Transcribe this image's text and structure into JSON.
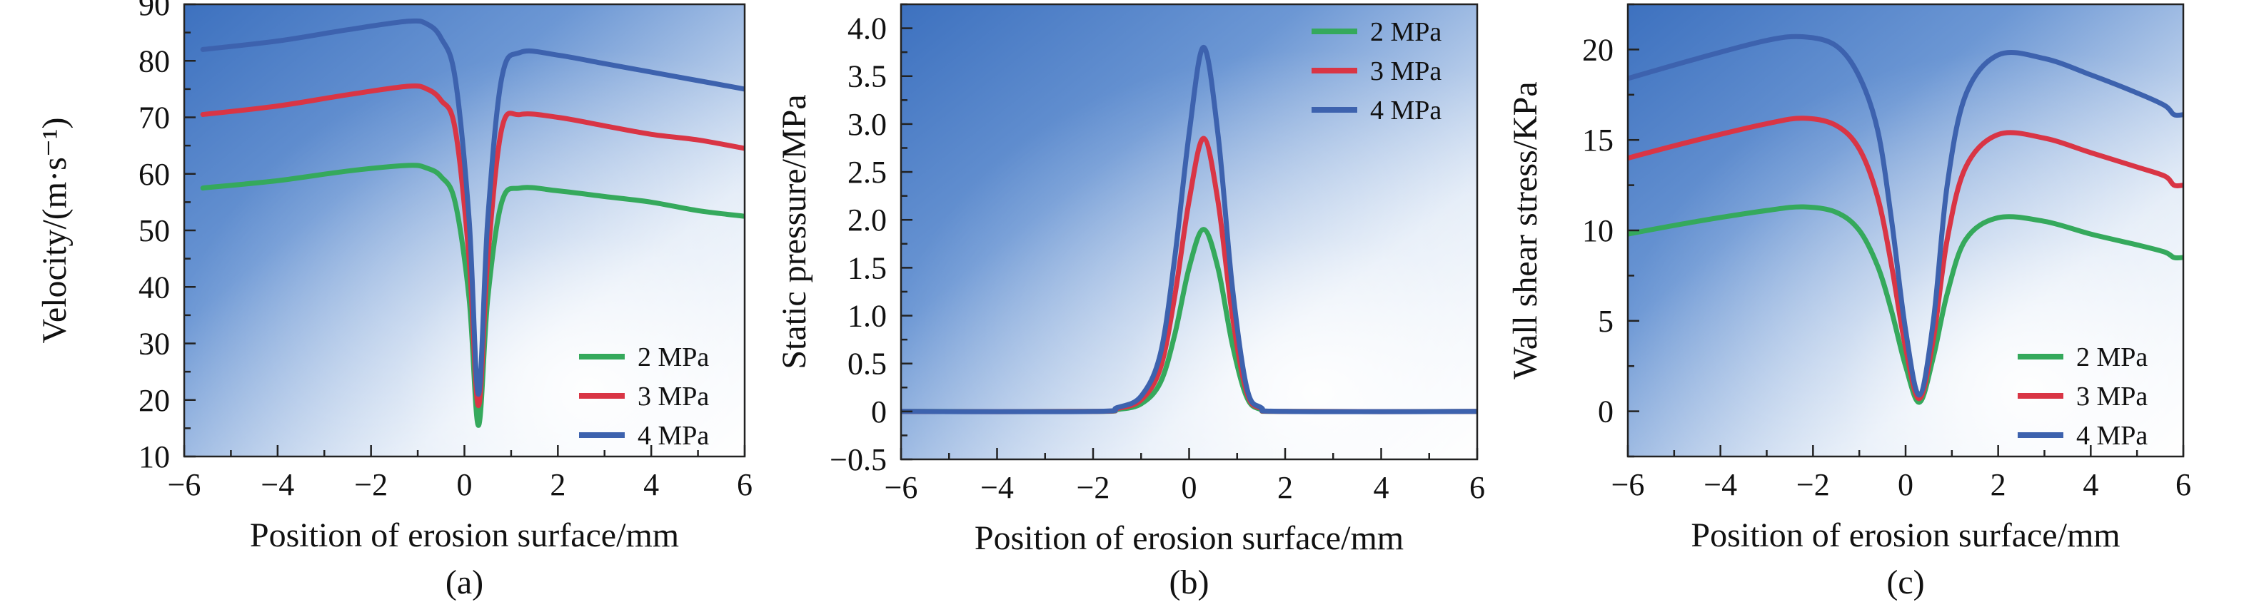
{
  "chart_data": [
    {
      "type": "line",
      "panel_label": "(a)",
      "xlabel": "Position of erosion surface/mm",
      "ylabel": "Velocity/(m·s⁻¹)",
      "xlim": [
        -6,
        6
      ],
      "ylim": [
        10,
        90
      ],
      "xticks": [
        -6,
        -4,
        -2,
        0,
        2,
        4,
        6
      ],
      "xtick_labels": [
        "−6",
        "−4",
        "−2",
        "0",
        "2",
        "4",
        "6"
      ],
      "yticks": [
        10,
        20,
        30,
        40,
        50,
        60,
        70,
        80,
        90
      ],
      "ytick_labels": [
        "10",
        "20",
        "30",
        "40",
        "50",
        "60",
        "70",
        "80",
        "90"
      ],
      "legend_position": "bottom-right",
      "grid": false,
      "series": [
        {
          "name": "2 MPa",
          "color": "#35a95c",
          "x": [
            -5.6,
            -4,
            -2.5,
            -1.2,
            -0.8,
            -0.5,
            -0.2,
            0.1,
            0.3,
            0.5,
            0.8,
            1.2,
            2,
            3,
            4,
            5,
            6
          ],
          "y": [
            57.5,
            58.8,
            60.5,
            61.5,
            61,
            59.5,
            55,
            38,
            15.5,
            38,
            55,
            57.5,
            57,
            56,
            55,
            53.5,
            52.5
          ]
        },
        {
          "name": "3 MPa",
          "color": "#d93545",
          "x": [
            -5.6,
            -4,
            -2.5,
            -1.2,
            -0.8,
            -0.5,
            -0.2,
            0.1,
            0.3,
            0.5,
            0.8,
            1.2,
            2,
            3,
            4,
            5,
            6
          ],
          "y": [
            70.5,
            72,
            74,
            75.5,
            75,
            73,
            68,
            45,
            19,
            45,
            68,
            70.5,
            70,
            68.5,
            67,
            66,
            64.5
          ]
        },
        {
          "name": "4 MPa",
          "color": "#3d62ae",
          "x": [
            -5.6,
            -4,
            -2.5,
            -1.2,
            -0.8,
            -0.5,
            -0.2,
            0.1,
            0.3,
            0.5,
            0.8,
            1.2,
            2,
            3,
            4,
            5,
            6
          ],
          "y": [
            82,
            83.5,
            85.5,
            87,
            86.5,
            84,
            77,
            52,
            21,
            52,
            77,
            81.5,
            81,
            79.5,
            78,
            76.5,
            75
          ]
        }
      ]
    },
    {
      "type": "line",
      "panel_label": "(b)",
      "xlabel": "Position of erosion surface/mm",
      "ylabel": "Static pressure/MPa",
      "xlim": [
        -6,
        6
      ],
      "ylim": [
        -0.5,
        4.25
      ],
      "xticks": [
        -6,
        -4,
        -2,
        0,
        2,
        4,
        6
      ],
      "xtick_labels": [
        "−6",
        "−4",
        "−2",
        "0",
        "2",
        "4",
        "6"
      ],
      "yticks": [
        -0.5,
        0,
        0.5,
        1.0,
        1.5,
        2.0,
        2.5,
        3.0,
        3.5,
        4.0
      ],
      "ytick_labels": [
        "−0.5",
        "0",
        "0.5",
        "1.0",
        "1.5",
        "2.0",
        "2.5",
        "3.0",
        "3.5",
        "4.0"
      ],
      "legend_position": "top-right",
      "grid": false,
      "series": [
        {
          "name": "2 MPa",
          "color": "#35a95c",
          "x": [
            -6,
            -2,
            -1.5,
            -1.0,
            -0.6,
            -0.3,
            0,
            0.3,
            0.6,
            0.9,
            1.2,
            1.5,
            2,
            6
          ],
          "y": [
            0,
            0,
            0.02,
            0.08,
            0.3,
            0.8,
            1.5,
            1.9,
            1.5,
            0.7,
            0.15,
            0.02,
            0,
            0
          ]
        },
        {
          "name": "3 MPa",
          "color": "#d93545",
          "x": [
            -6,
            -2,
            -1.5,
            -1.0,
            -0.6,
            -0.3,
            0,
            0.3,
            0.6,
            0.9,
            1.2,
            1.5,
            2,
            6
          ],
          "y": [
            0,
            0,
            0.03,
            0.12,
            0.45,
            1.2,
            2.2,
            2.85,
            2.2,
            1.0,
            0.2,
            0.03,
            0,
            0
          ]
        },
        {
          "name": "4 MPa",
          "color": "#3d62ae",
          "x": [
            -6,
            -2,
            -1.5,
            -1.0,
            -0.6,
            -0.3,
            0,
            0.3,
            0.6,
            0.9,
            1.2,
            1.5,
            2,
            6
          ],
          "y": [
            0,
            0,
            0.04,
            0.16,
            0.6,
            1.6,
            2.9,
            3.8,
            2.9,
            1.3,
            0.25,
            0.04,
            0,
            0
          ]
        }
      ]
    },
    {
      "type": "line",
      "panel_label": "(c)",
      "xlabel": "Position of erosion surface/mm",
      "ylabel": "Wall shear stress/KPa",
      "xlim": [
        -6,
        6
      ],
      "ylim": [
        -2.5,
        22.5
      ],
      "xticks": [
        -6,
        -4,
        -2,
        0,
        2,
        4,
        6
      ],
      "xtick_labels": [
        "−6",
        "−4",
        "−2",
        "0",
        "2",
        "4",
        "6"
      ],
      "yticks": [
        0,
        5,
        10,
        15,
        20
      ],
      "ytick_labels": [
        "0",
        "5",
        "10",
        "15",
        "20"
      ],
      "legend_position": "bottom-right",
      "grid": false,
      "series": [
        {
          "name": "2 MPa",
          "color": "#35a95c",
          "x": [
            -6,
            -4.5,
            -3,
            -2.2,
            -1.5,
            -1,
            -0.6,
            -0.3,
            0,
            0.3,
            0.6,
            0.9,
            1.3,
            2,
            3,
            4,
            5,
            5.6,
            5.8,
            6
          ],
          "y": [
            9.8,
            10.5,
            11.1,
            11.3,
            11,
            10,
            8,
            5.5,
            2.5,
            0.5,
            3,
            6.5,
            9.5,
            10.7,
            10.5,
            9.8,
            9.2,
            8.8,
            8.5,
            8.5
          ]
        },
        {
          "name": "3 MPa",
          "color": "#d93545",
          "x": [
            -6,
            -4.5,
            -3,
            -2.2,
            -1.5,
            -1,
            -0.6,
            -0.3,
            0,
            0.3,
            0.6,
            0.9,
            1.3,
            2,
            3,
            4,
            5,
            5.6,
            5.8,
            6
          ],
          "y": [
            14,
            15,
            15.9,
            16.2,
            15.8,
            14.5,
            11.8,
            8,
            3.5,
            0.7,
            4,
            9.5,
            13.5,
            15.3,
            15.1,
            14.3,
            13.5,
            13,
            12.5,
            12.5
          ]
        },
        {
          "name": "4 MPa",
          "color": "#3d62ae",
          "x": [
            -6,
            -4.5,
            -3,
            -2.2,
            -1.5,
            -1,
            -0.6,
            -0.3,
            0,
            0.3,
            0.6,
            0.9,
            1.3,
            2,
            3,
            4,
            5,
            5.6,
            5.8,
            6
          ],
          "y": [
            18.4,
            19.5,
            20.5,
            20.7,
            20.2,
            18.5,
            15.5,
            10.5,
            4.5,
            0.9,
            5,
            12.5,
            17.5,
            19.7,
            19.5,
            18.6,
            17.6,
            16.9,
            16.4,
            16.4
          ]
        }
      ]
    }
  ]
}
